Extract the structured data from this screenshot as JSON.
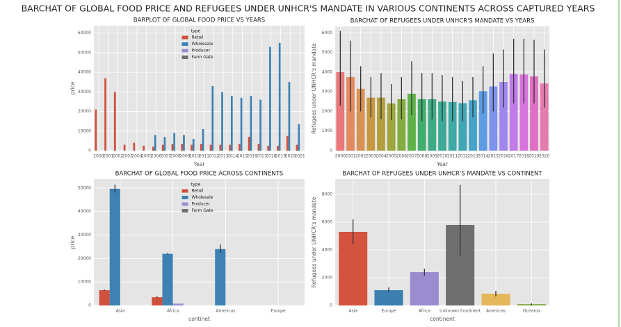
{
  "title": "BARCHAT OF GLOBAL FOOD PRICE AND REFUGEES UNDER UNHCR'S MANDATE IN VARIOUS CONTINENTS ACROSS CAPTURED YEARS",
  "chart_data": [
    {
      "type": "bar",
      "title": "BARPLOT OF GLOBAL FOOD PRICE VS YEARS",
      "x_label": "Year",
      "y_label": "price",
      "categories": [
        "2000",
        "2001",
        "2002",
        "2003",
        "2004",
        "2005",
        "2006",
        "2007",
        "2008",
        "2009",
        "2010",
        "2011",
        "2012",
        "2013",
        "2014",
        "2015",
        "2016",
        "2017",
        "2018",
        "2019",
        "2020",
        "2021"
      ],
      "legend_title": "type",
      "legend": "upper center",
      "grid": true,
      "series": [
        {
          "name": "Retail",
          "color": "#d0503e",
          "values": [
            21000,
            37000,
            30000,
            3000,
            4000,
            2500,
            2000,
            3000,
            3500,
            3500,
            3000,
            3500,
            3000,
            3000,
            3000,
            3500,
            7000,
            3500,
            2500,
            2500,
            7500,
            3000
          ]
        },
        {
          "name": "Wholesale",
          "color": "#3d82b3",
          "values": [
            null,
            null,
            null,
            null,
            null,
            null,
            8000,
            7000,
            9000,
            8000,
            6000,
            11000,
            33000,
            30000,
            28000,
            27000,
            28000,
            26000,
            53000,
            55000,
            35000,
            13500
          ]
        },
        {
          "name": "Producer",
          "color": "#9d8ed2",
          "values": [
            null,
            null,
            null,
            null,
            null,
            null,
            null,
            null,
            null,
            null,
            null,
            null,
            null,
            null,
            null,
            null,
            null,
            null,
            null,
            null,
            null,
            null
          ]
        },
        {
          "name": "Farm Gate",
          "color": "#6f6f6f",
          "values": [
            null,
            null,
            null,
            null,
            null,
            null,
            null,
            null,
            null,
            null,
            null,
            null,
            null,
            null,
            null,
            null,
            null,
            null,
            null,
            null,
            null,
            null
          ]
        }
      ],
      "ylim": [
        0,
        63800
      ],
      "yticks": [
        0,
        10000,
        20000,
        30000,
        40000,
        50000,
        60000
      ]
    },
    {
      "type": "bar",
      "title": "BARCHAT OF REFUGEES UNDER UNHCR'S MANDATE VS YEARS",
      "x_label": "Year",
      "y_label": "Refugees under UNHCR's mandate",
      "categories": [
        "2000",
        "2001",
        "2002",
        "2003",
        "2004",
        "2005",
        "2006",
        "2007",
        "2008",
        "2009",
        "2010",
        "2011",
        "2012",
        "2013",
        "2014",
        "2015",
        "2016",
        "2017",
        "2018",
        "2019",
        "2020"
      ],
      "values": [
        4000,
        3750,
        3150,
        2700,
        2700,
        2400,
        2620,
        2900,
        2620,
        2620,
        2500,
        2480,
        2420,
        2570,
        3030,
        3270,
        3500,
        3900,
        3880,
        3780,
        3420
      ],
      "ci": [
        [
          2300,
          6100
        ],
        [
          2000,
          5600
        ],
        [
          2000,
          4300
        ],
        [
          1700,
          3750
        ],
        [
          1600,
          3950
        ],
        [
          1550,
          3400
        ],
        [
          1600,
          3750
        ],
        [
          1800,
          4550
        ],
        [
          1500,
          3950
        ],
        [
          1600,
          3950
        ],
        [
          1500,
          3850
        ],
        [
          1500,
          3750
        ],
        [
          1500,
          3550
        ],
        [
          1700,
          3750
        ],
        [
          1900,
          4300
        ],
        [
          2000,
          4950
        ],
        [
          2200,
          5150
        ],
        [
          2400,
          5700
        ],
        [
          2400,
          5700
        ],
        [
          2400,
          5650
        ],
        [
          2200,
          5150
        ]
      ],
      "colors": [
        "#e8787a",
        "#e48a60",
        "#d99255",
        "#c7983f",
        "#b39e3d",
        "#9ea63d",
        "#85ab3f",
        "#5fb14a",
        "#3fae6b",
        "#3eab85",
        "#3daa97",
        "#3ea9a5",
        "#40a7b5",
        "#45a3c8",
        "#5b9ce2",
        "#7d93ee",
        "#a286ef",
        "#c17ae8",
        "#d872dd",
        "#e06fc5",
        "#e67bae"
      ],
      "grid": true,
      "ylim": [
        0,
        6330
      ],
      "yticks": [
        0,
        1000,
        2000,
        3000,
        4000,
        5000,
        6000
      ]
    },
    {
      "type": "bar",
      "title": "BARCHAT OF GLOBAL FOOD PRICE ACROSS CONTINENTS",
      "x_label": "continet",
      "y_label": "price",
      "categories": [
        "Asia",
        "Africa",
        "Americas",
        "Europe"
      ],
      "legend_title": "type",
      "legend": "upper center",
      "grid": true,
      "series": [
        {
          "name": "Retail",
          "color": "#d0503e",
          "values": [
            6500,
            3500,
            null,
            null
          ],
          "ci": [
            [
              6200,
              6800
            ],
            [
              3200,
              3900
            ],
            null,
            null
          ]
        },
        {
          "name": "Wholesale",
          "color": "#3d82b3",
          "values": [
            49700,
            22000,
            24000,
            null
          ],
          "ci": [
            [
              48000,
              51500
            ],
            [
              21700,
              22300
            ],
            [
              22500,
              26000
            ],
            null
          ]
        },
        {
          "name": "Producer",
          "color": "#9d8ed2",
          "values": [
            null,
            800,
            null,
            null
          ],
          "ci": [
            null,
            null,
            null,
            null
          ]
        },
        {
          "name": "Farm Gate",
          "color": "#6f6f6f",
          "values": [
            null,
            null,
            null,
            null
          ],
          "ci": [
            null,
            null,
            null,
            null
          ]
        }
      ],
      "ylim": [
        0,
        53800
      ],
      "yticks": [
        0,
        10000,
        20000,
        30000,
        40000,
        50000
      ]
    },
    {
      "type": "bar",
      "title": "BARCHAT OF REFUGEES UNDER UNHCR'S MANDATE VS CONTINENT",
      "x_label": "continent",
      "y_label": "Refugees under UNHCR's mandate",
      "categories": [
        "Asia",
        "Europe",
        "Africa",
        "Unknown Continent",
        "Americas",
        "Oceania"
      ],
      "values": [
        5300,
        1100,
        2400,
        5800,
        850,
        100
      ],
      "ci": [
        [
          4400,
          6200
        ],
        [
          950,
          1300
        ],
        [
          2150,
          2650
        ],
        [
          3600,
          8700
        ],
        [
          650,
          1050
        ],
        [
          20,
          150
        ]
      ],
      "colors": [
        "#d3533e",
        "#3b7fb0",
        "#9b8ccf",
        "#6f6f6f",
        "#e5b65a",
        "#8bb04f"
      ],
      "grid": true,
      "ylim": [
        0,
        9100
      ],
      "yticks": [
        0,
        2000,
        4000,
        6000,
        8000
      ]
    }
  ]
}
